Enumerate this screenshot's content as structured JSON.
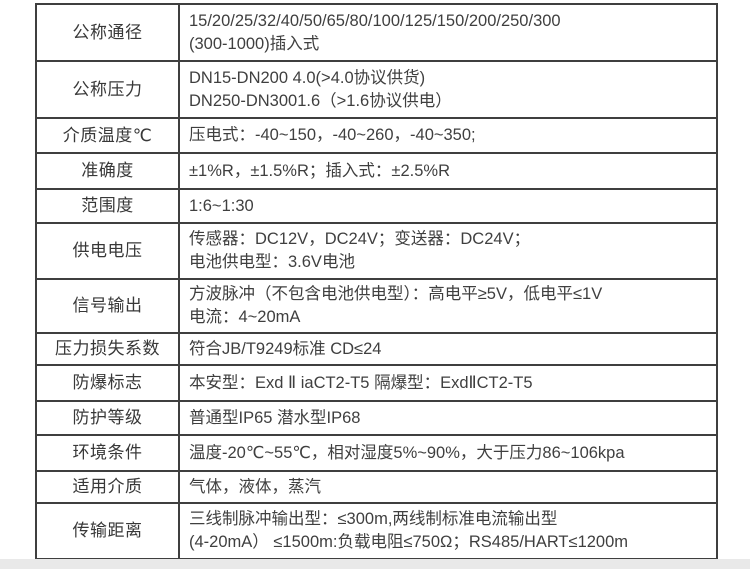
{
  "page": {
    "background": "#ffffff",
    "bottom_strip_color": "#e9e9e9"
  },
  "colors": {
    "table_border": "#3f3f3f",
    "label_text": "#383838",
    "value_text": "#3f3f3f"
  },
  "table": {
    "rows": [
      {
        "label": "公称通径",
        "value": "15/20/25/32/40/50/65/80/100/125/150/200/250/300\n(300-1000)插入式"
      },
      {
        "label": "公称压力",
        "value": "DN15-DN200 4.0(>4.0协议供货)\nDN250-DN3001.6（>1.6协议供电）"
      },
      {
        "label": "介质温度℃",
        "value": "压电式：-40~150，-40~260，-40~350;"
      },
      {
        "label": "准确度",
        "value": "±1%R，±1.5%R；插入式：±2.5%R"
      },
      {
        "label": "范围度",
        "value": "1:6~1:30"
      },
      {
        "label": "供电电压",
        "value": "传感器：DC12V，DC24V；变送器：DC24V；\n电池供电型：3.6V电池"
      },
      {
        "label": "信号输出",
        "value": "方波脉冲（不包含电池供电型）：高电平≥5V，低电平≤1V\n电流：4~20mA"
      },
      {
        "label": "压力损失系数",
        "value": "符合JB/T9249标准 CD≤24"
      },
      {
        "label": "防爆标志",
        "value": "本安型：Exd Ⅱ iaCT2-T5 隔爆型：ExdⅡCT2-T5"
      },
      {
        "label": "防护等级",
        "value": "普通型IP65 潜水型IP68"
      },
      {
        "label": "环境条件",
        "value": "温度-20℃~55℃，相对湿度5%~90%，大于压力86~106kpa"
      },
      {
        "label": "适用介质",
        "value": "气体，液体，蒸汽"
      },
      {
        "label": "传输距离",
        "value": "三线制脉冲输出型：≤300m,两线制标准电流输出型\n(4-20mA） ≤1500m:负载电阻≤750Ω；RS485/HART≤1200m"
      }
    ]
  }
}
